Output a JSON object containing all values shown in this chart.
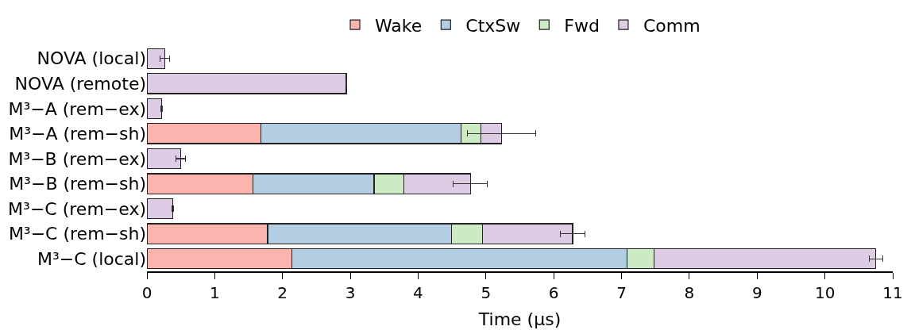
{
  "chart_data": {
    "type": "bar",
    "orientation": "horizontal",
    "stacked": true,
    "xlabel": "Time (µs)",
    "categories": [
      "NOVA (local)",
      "NOVA (remote)",
      "M³−A (rem−ex)",
      "M³−A (rem−sh)",
      "M³−B (rem−ex)",
      "M³−B (rem−sh)",
      "M³−C (rem−ex)",
      "M³−C (rem−sh)",
      "M³−C (local)"
    ],
    "series": [
      {
        "name": "Wake",
        "color": "#fbb4ae",
        "values": [
          null,
          null,
          null,
          1.68,
          null,
          1.56,
          null,
          1.78,
          2.14
        ]
      },
      {
        "name": "CtxSw",
        "color": "#b3cde3",
        "values": [
          null,
          null,
          null,
          2.95,
          null,
          1.79,
          null,
          2.71,
          4.94
        ]
      },
      {
        "name": "Fwd",
        "color": "#ccebc5",
        "values": [
          null,
          null,
          null,
          0.3,
          null,
          0.44,
          null,
          0.46,
          0.4
        ]
      },
      {
        "name": "Comm",
        "color": "#decbe4",
        "values": [
          0.26,
          2.94,
          0.22,
          0.3,
          0.5,
          0.98,
          0.38,
          1.33,
          3.27
        ],
        "errors": [
          0.07,
          0.01,
          0.01,
          0.5,
          0.07,
          0.25,
          0.01,
          0.18,
          0.1
        ]
      }
    ],
    "xlim": [
      0,
      11
    ],
    "xticks": [
      0,
      1,
      2,
      3,
      4,
      5,
      6,
      7,
      8,
      9,
      10,
      11
    ],
    "legend": "top"
  }
}
